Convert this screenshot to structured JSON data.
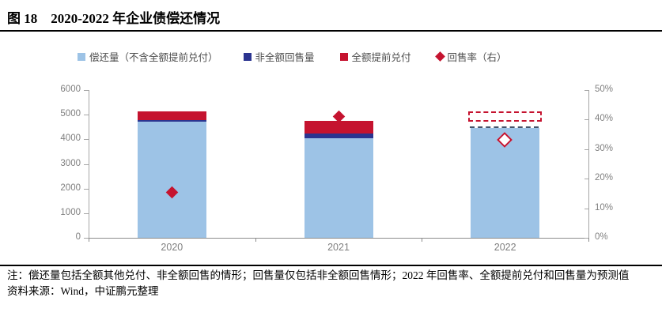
{
  "figure": {
    "label": "图 18",
    "title": "2020-2022 年企业债偿还情况"
  },
  "legend": [
    {
      "label": "偿还量（不含全额提前兑付）",
      "marker": "square",
      "color": "#9DC3E6"
    },
    {
      "label": "非全额回售量",
      "marker": "square",
      "color": "#2B3490"
    },
    {
      "label": "全额提前兑付",
      "marker": "square",
      "color": "#C5132F"
    },
    {
      "label": "回售率（右）",
      "marker": "diamond",
      "color": "#C5132F"
    }
  ],
  "chart_data": {
    "type": "bar",
    "title": "2020-2022 年企业债偿还情况",
    "categories": [
      "2020",
      "2021",
      "2022"
    ],
    "series": [
      {
        "name": "偿还量（不含全额提前兑付）",
        "type": "bar",
        "stack": true,
        "color": "#9DC3E6",
        "values": [
          4730,
          4030,
          4460
        ]
      },
      {
        "name": "非全额回售量",
        "type": "bar",
        "stack": true,
        "color": "#2B3490",
        "values": [
          60,
          220,
          0
        ]
      },
      {
        "name": "全额提前兑付",
        "type": "bar",
        "stack": true,
        "color": "#C5132F",
        "values": [
          340,
          510,
          410
        ]
      },
      {
        "name": "回售率（右）",
        "type": "scatter",
        "marker": "diamond",
        "axis": "right",
        "color": "#C5132F",
        "values": [
          15.5,
          41,
          33
        ],
        "unit": "%"
      }
    ],
    "left_axis": {
      "min": 0,
      "max": 6000,
      "ticks": [
        6000,
        5000,
        4000,
        3000,
        2000,
        1000,
        0
      ]
    },
    "right_axis": {
      "min": 0,
      "max": 50,
      "ticks": [
        50,
        40,
        30,
        20,
        10,
        0
      ],
      "suffix": "%"
    },
    "forecast": {
      "category": "2022",
      "dashed_bar_top": true,
      "red_dashed_box": {
        "from": 4720,
        "to": 5130
      },
      "hollow_diamond": true
    },
    "grid": false,
    "legend_position": "top"
  },
  "notes": {
    "note": "注：偿还量包括全额其他兑付、非全额回售的情形；回售量仅包括非全额回售情形；2022 年回售率、全额提前兑付和回售量为预测值",
    "source": "资料来源：Wind，中证鹏元整理"
  },
  "colors": {
    "light_blue": "#9DC3E6",
    "navy": "#2B3490",
    "red": "#C5132F",
    "forecast_top_dash": "#44546A",
    "axis_line": "#A6A6A6",
    "bottom_axis_line": "#8C8C8C",
    "tick_text": "#7F7F7F",
    "legend_text": "#4D4D4D"
  }
}
